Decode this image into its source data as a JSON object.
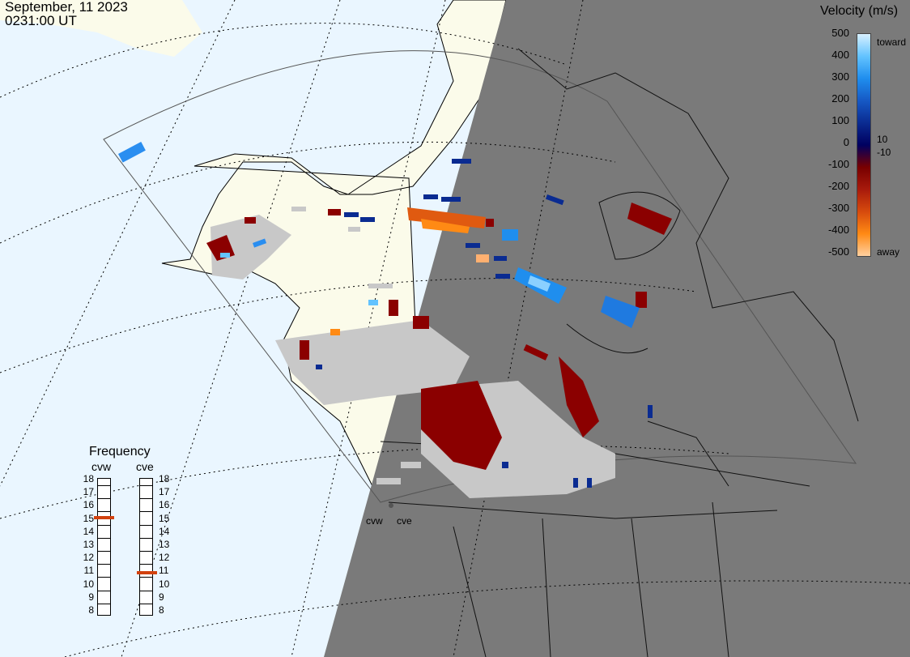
{
  "header": {
    "date": "September, 11 2023",
    "time": "0231:00 UT"
  },
  "velocity_scale": {
    "title": "Velocity (m/s)",
    "ticks": [
      "500",
      "400",
      "300",
      "200",
      "100",
      "0",
      "-100",
      "-200",
      "-300",
      "-400",
      "-500"
    ],
    "threshold_pos": "10",
    "threshold_neg": "-10",
    "toward_label": "toward",
    "away_label": "away",
    "colors": [
      "#d8f0ff",
      "#63c3ff",
      "#1f8eee",
      "#1659c5",
      "#0a2b91",
      "#000060",
      "#780000",
      "#a81a0c",
      "#d64a0d",
      "#ff8a14",
      "#ffd0a0"
    ]
  },
  "frequency": {
    "title": "Frequency",
    "radars": [
      {
        "name": "cvw",
        "value_mhz": 15
      },
      {
        "name": "cve",
        "value_mhz": 10.8
      }
    ],
    "ticks": [
      "18",
      "17",
      "16",
      "15",
      "14",
      "13",
      "12",
      "11",
      "10",
      "9",
      "8"
    ],
    "marker_color": "#d2410e"
  },
  "radar_sites": [
    "cvw",
    "cve"
  ],
  "map": {
    "ocean_color": "#eaf6ff",
    "land_color": "#fbfbea",
    "night_color": "#7a7a7a",
    "ground_scatter_color": "#c8c8c8"
  }
}
